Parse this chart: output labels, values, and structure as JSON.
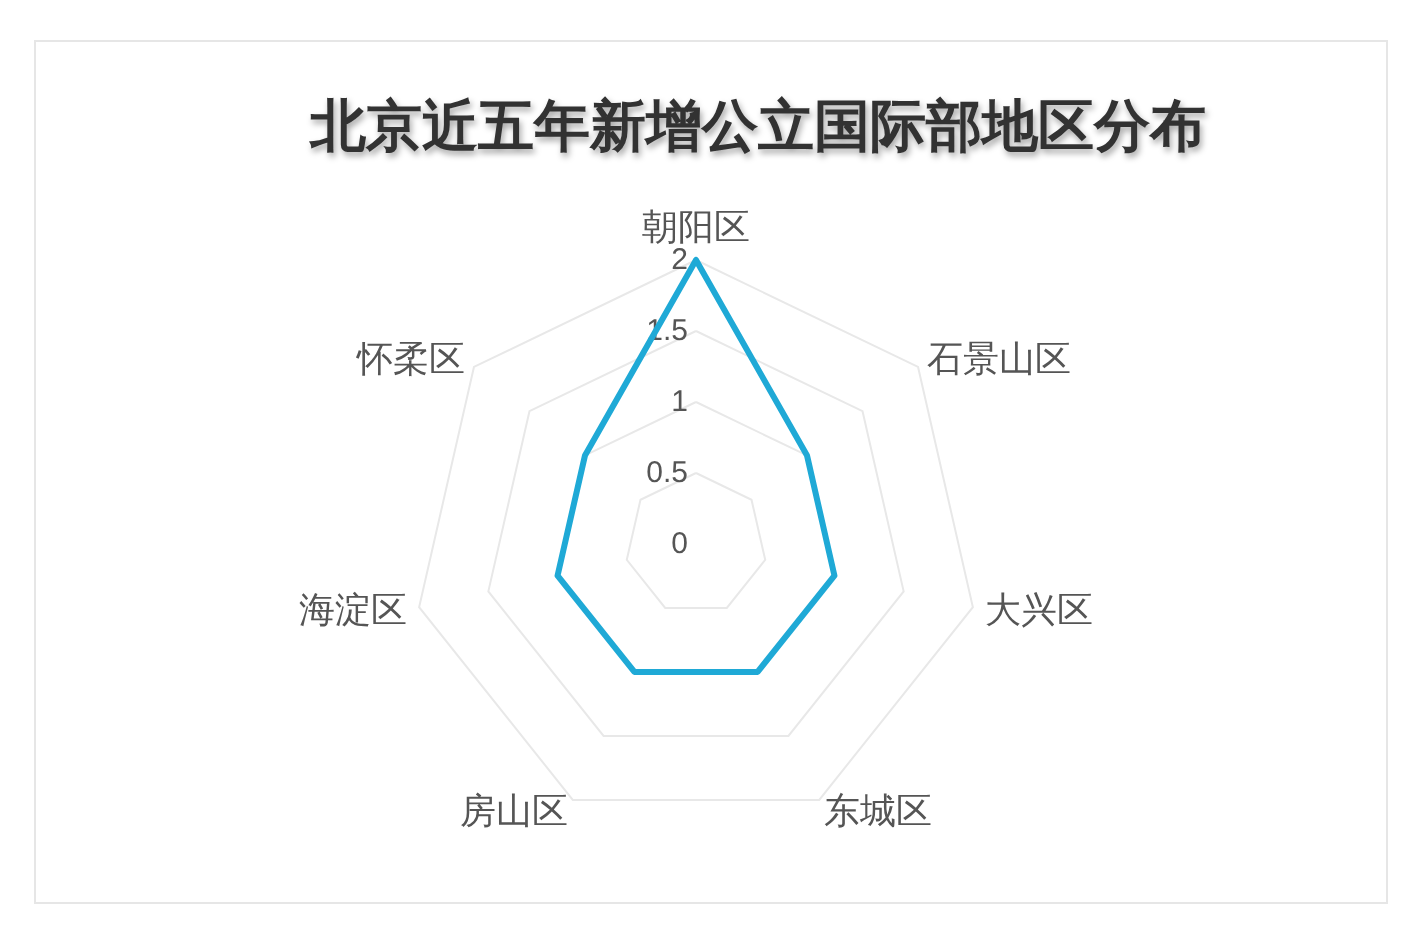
{
  "chart_data": {
    "type": "radar",
    "title": "北京近五年新增公立国际部地区分布",
    "categories": [
      "朝阳区",
      "石景山区",
      "大兴区",
      "东城区",
      "房山区",
      "海淀区",
      "怀柔区"
    ],
    "series": [
      {
        "color": "#1fa9d6",
        "values": [
          2,
          1,
          1,
          1,
          1,
          1,
          1
        ]
      }
    ],
    "ylim": [
      0,
      2
    ],
    "yticks": [
      0,
      0.5,
      1,
      1.5,
      2
    ],
    "grid": true
  }
}
